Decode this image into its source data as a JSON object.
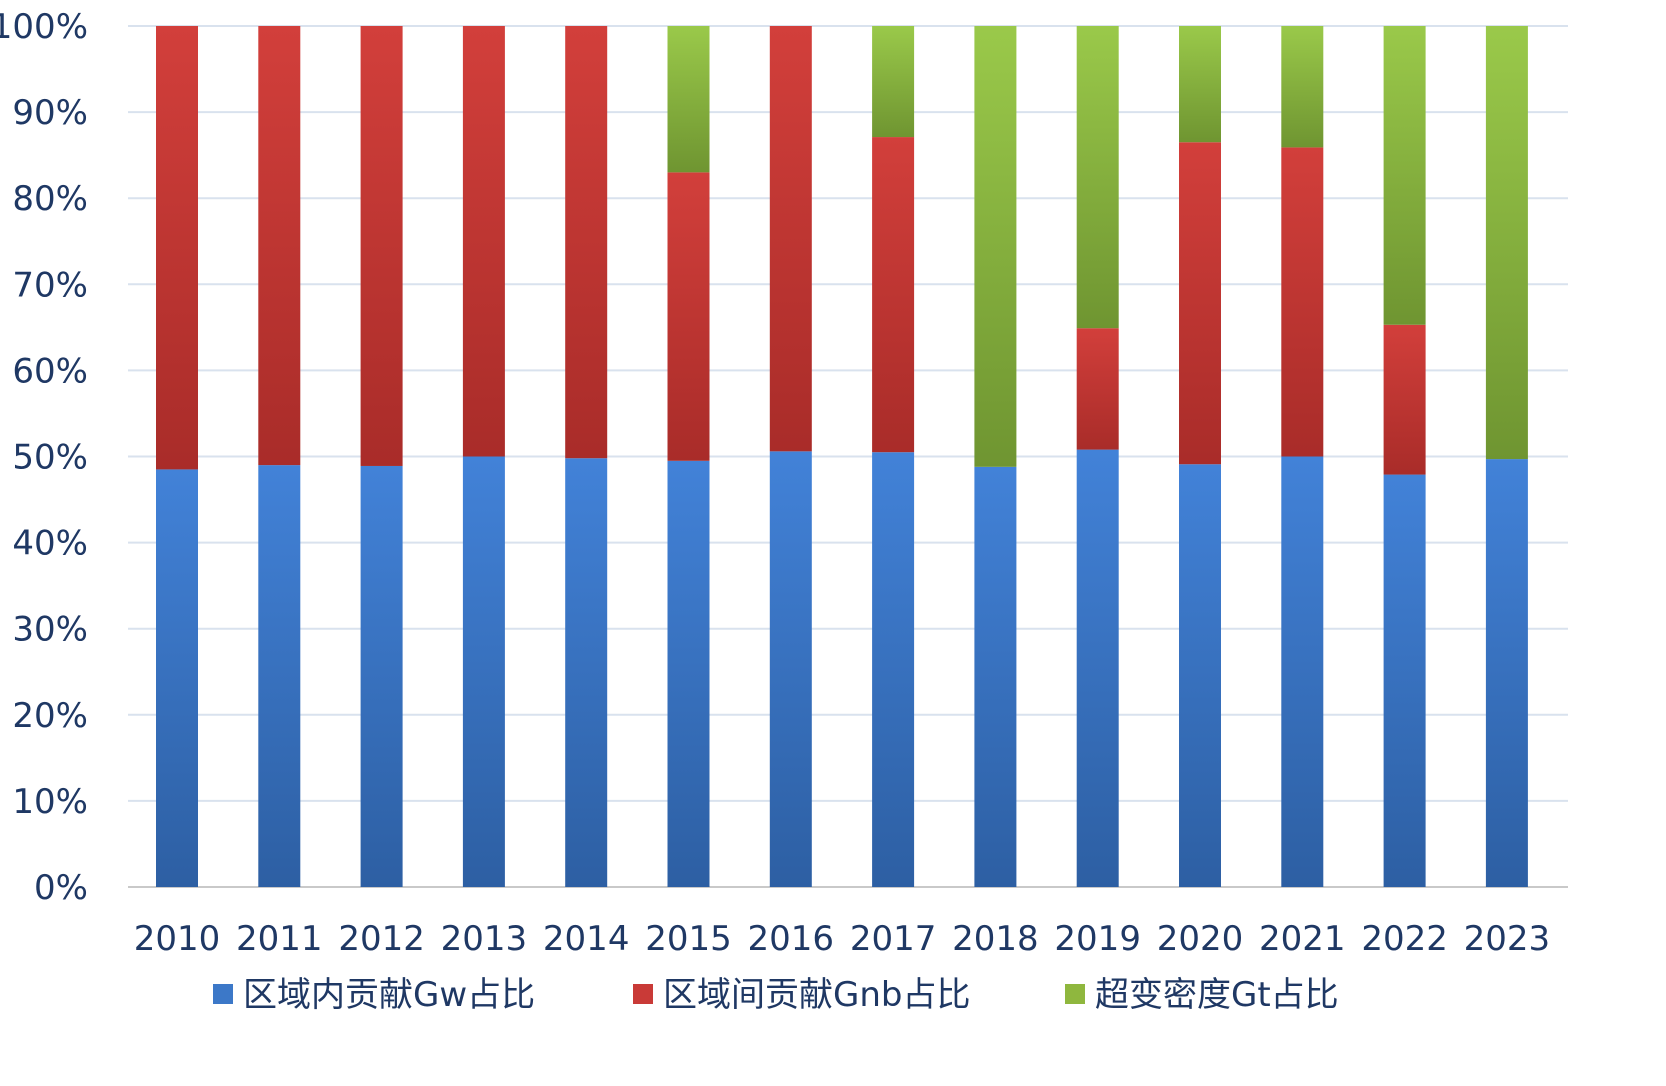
{
  "chart_data": {
    "type": "bar",
    "stacked": true,
    "categories": [
      "2010",
      "2011",
      "2012",
      "2013",
      "2014",
      "2015",
      "2016",
      "2017",
      "2018",
      "2019",
      "2020",
      "2021",
      "2022",
      "2023"
    ],
    "series": [
      {
        "name": "区域内贡献Gw占比",
        "color": "#3c78c8",
        "values": [
          48.5,
          49.0,
          48.9,
          50.0,
          49.8,
          49.5,
          50.6,
          50.5,
          48.8,
          50.8,
          49.1,
          50.0,
          47.9,
          49.7
        ]
      },
      {
        "name": "区域间贡献Gnb占比",
        "color": "#c93a37",
        "values": [
          51.5,
          51.0,
          51.1,
          50.0,
          50.2,
          33.5,
          49.4,
          36.6,
          0,
          14.1,
          37.4,
          35.9,
          17.4,
          0
        ]
      },
      {
        "name": "超变密度Gt占比",
        "color": "#8fb73e",
        "values": [
          0,
          0,
          0,
          0,
          0,
          17.0,
          0,
          12.9,
          51.2,
          35.1,
          13.5,
          14.1,
          34.7,
          50.3
        ]
      }
    ],
    "yticks": [
      "0%",
      "10%",
      "20%",
      "30%",
      "40%",
      "50%",
      "60%",
      "70%",
      "80%",
      "90%",
      "100%"
    ],
    "ylim": [
      0,
      100
    ],
    "grid": true,
    "legend_position": "bottom"
  }
}
